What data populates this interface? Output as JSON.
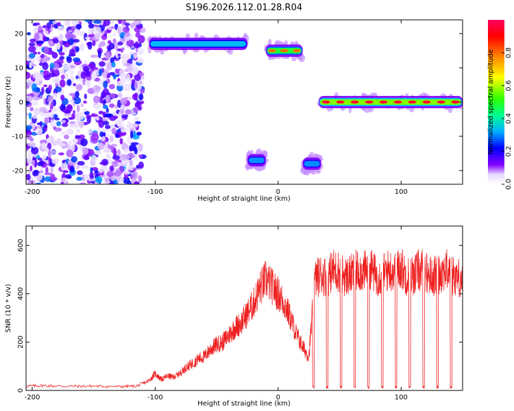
{
  "title": "S196.2026.112.01.28.R04",
  "chart_data": [
    {
      "type": "heatmap",
      "xlabel": "Height of straight line (km)",
      "ylabel": "Frequency (Hz)",
      "xlim": [
        -205,
        150
      ],
      "ylim": [
        -24,
        24
      ],
      "xticks": [
        -200,
        -100,
        0,
        100
      ],
      "xtick_labels": [
        "-200",
        "-100",
        "0",
        "100"
      ],
      "yticks": [
        20,
        10,
        0,
        -10,
        -20
      ],
      "ytick_labels": [
        "20",
        "10",
        "0",
        "-10",
        "-20"
      ],
      "colorbar": {
        "label": "Normalized spectral amplitude",
        "range": [
          0,
          1
        ],
        "ticks": [
          0.0,
          0.2,
          0.4,
          0.6,
          0.8
        ],
        "tick_labels": [
          "0.0",
          "0.2",
          "0.4",
          "0.6",
          "0.8"
        ],
        "colors": [
          "#ffffff",
          "#e8d8ff",
          "#8000ff",
          "#0000ff",
          "#00b0ff",
          "#00ff90",
          "#30ff00",
          "#ffff00",
          "#ff8000",
          "#ff0000",
          "#ff0060"
        ]
      },
      "features": [
        {
          "name": "diffuse noise",
          "x_range": [
            -205,
            -110
          ],
          "freq_range": [
            -24,
            24
          ],
          "amplitude": 0.15
        },
        {
          "name": "signal band ~17 Hz",
          "x_range": [
            -105,
            -25
          ],
          "freq": 17,
          "amplitude": 0.55
        },
        {
          "name": "signal at 15 Hz",
          "x_range": [
            -10,
            20
          ],
          "freq": 15,
          "amplitude": 0.8
        },
        {
          "name": "signal at -17 Hz",
          "x_range": [
            -25,
            -10
          ],
          "freq": -17,
          "amplitude": 0.5
        },
        {
          "name": "signal at -18 Hz",
          "x_range": [
            20,
            35
          ],
          "freq": -18,
          "amplitude": 0.5
        },
        {
          "name": "carrier at 0 Hz",
          "x_range": [
            33,
            150
          ],
          "freq": 0,
          "amplitude": 0.95
        }
      ]
    },
    {
      "type": "line",
      "xlabel": "Height of straight line (km)",
      "ylabel": "SNR (10 * v/v)",
      "xlim": [
        -205,
        150
      ],
      "ylim": [
        0,
        680
      ],
      "xticks": [
        -200,
        -100,
        0,
        100
      ],
      "xtick_labels": [
        "-200",
        "-100",
        "0",
        "100"
      ],
      "yticks": [
        0,
        200,
        400,
        600
      ],
      "ytick_labels": [
        "0",
        "200",
        "400",
        "600"
      ],
      "series": [
        {
          "name": "SNR",
          "color": "#ee2020",
          "x": [
            -205,
            -190,
            -170,
            -150,
            -130,
            -115,
            -105,
            -100,
            -95,
            -90,
            -85,
            -80,
            -75,
            -70,
            -65,
            -60,
            -55,
            -50,
            -45,
            -40,
            -35,
            -30,
            -25,
            -20,
            -15,
            -10,
            -5,
            0,
            5,
            10,
            15,
            20,
            25,
            30,
            35,
            40,
            45,
            50,
            55,
            60,
            65,
            70,
            75,
            80,
            85,
            90,
            95,
            100,
            105,
            110,
            115,
            120,
            125,
            130,
            135,
            140,
            145,
            150
          ],
          "y": [
            18,
            20,
            17,
            18,
            16,
            18,
            40,
            70,
            45,
            60,
            55,
            70,
            95,
            110,
            130,
            140,
            170,
            190,
            200,
            230,
            260,
            280,
            320,
            360,
            420,
            460,
            430,
            400,
            360,
            300,
            230,
            180,
            140,
            460,
            480,
            470,
            500,
            490,
            470,
            480,
            500,
            490,
            510,
            470,
            480,
            500,
            490,
            510,
            470,
            480,
            500,
            490,
            470,
            480,
            500,
            490,
            470,
            460
          ]
        }
      ]
    }
  ]
}
